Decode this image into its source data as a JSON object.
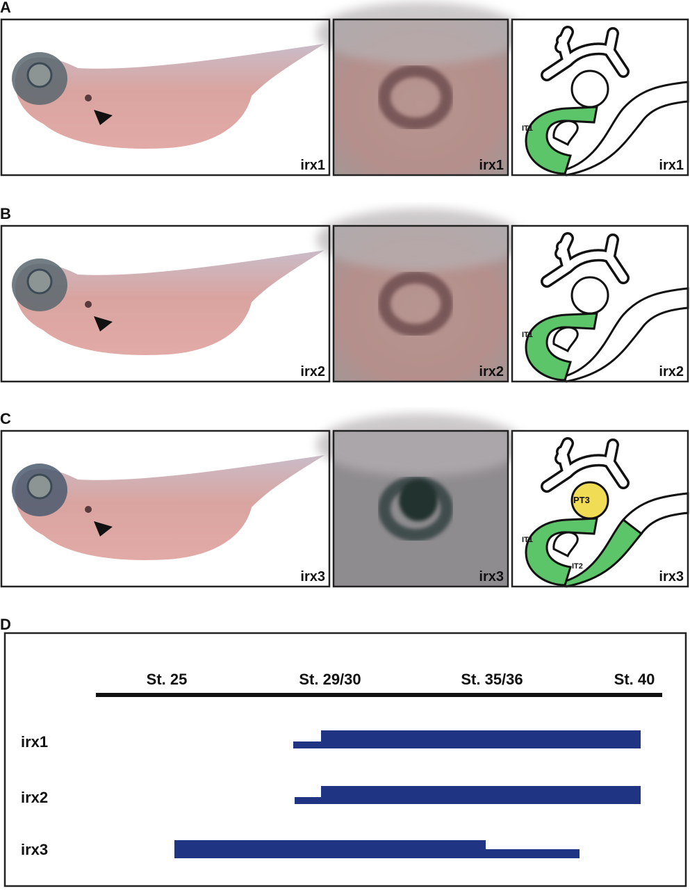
{
  "panels": [
    {
      "letter": "A",
      "labels": [
        "irx1",
        "irx1",
        "irx1"
      ],
      "diagram_labels": [
        "IT1"
      ]
    },
    {
      "letter": "B",
      "labels": [
        "irx2",
        "irx2",
        "irx2"
      ],
      "diagram_labels": [
        "IT1"
      ]
    },
    {
      "letter": "C",
      "labels": [
        "irx3",
        "irx3",
        "irx3"
      ],
      "diagram_labels": [
        "IT1",
        "PT3",
        "IT2"
      ]
    }
  ],
  "timeline": {
    "letter": "D",
    "stages": [
      "St. 25",
      "St. 29/30",
      "St. 35/36",
      "St. 40"
    ],
    "genes": [
      "irx1",
      "irx2",
      "irx3"
    ]
  }
}
